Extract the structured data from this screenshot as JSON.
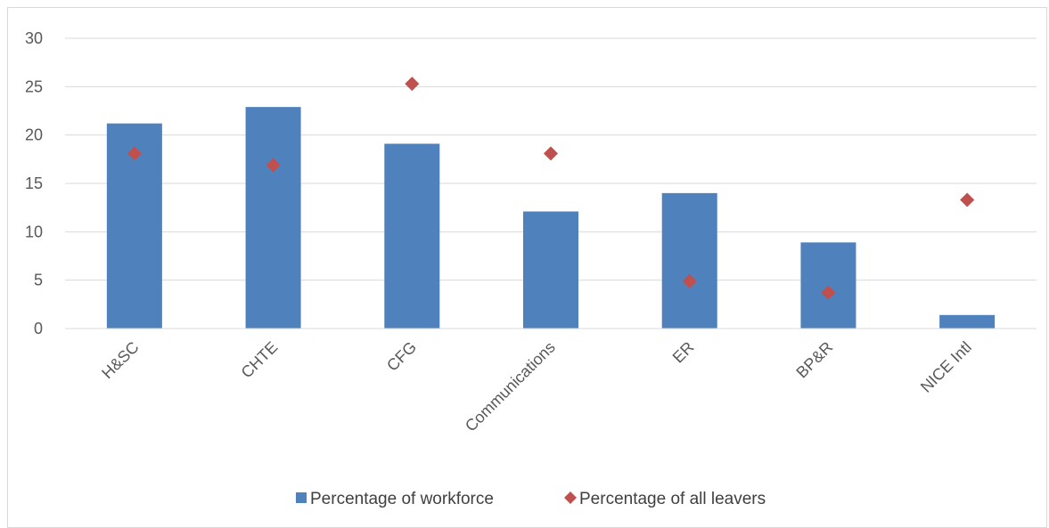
{
  "chart_data": {
    "type": "bar",
    "title": "",
    "xlabel": "",
    "ylabel": "",
    "ylim": [
      0,
      30
    ],
    "y_ticks": [
      "0",
      "5",
      "10",
      "15",
      "20",
      "25",
      "30"
    ],
    "grid": true,
    "legend_position": "bottom",
    "categories": [
      "H&SC",
      "CHTE",
      "CFG",
      "Communications",
      "ER",
      "BP&R",
      "NICE Intl"
    ],
    "series": [
      {
        "name": "Percentage of workforce",
        "type": "bar",
        "color": "#4f81bd",
        "values": [
          21.2,
          22.9,
          19.1,
          12.1,
          14.0,
          8.9,
          1.4
        ]
      },
      {
        "name": "Percentage of all leavers",
        "type": "scatter",
        "marker": "diamond",
        "color": "#c0504d",
        "values": [
          18.1,
          16.9,
          25.3,
          18.1,
          4.9,
          3.7,
          13.3
        ]
      }
    ]
  }
}
